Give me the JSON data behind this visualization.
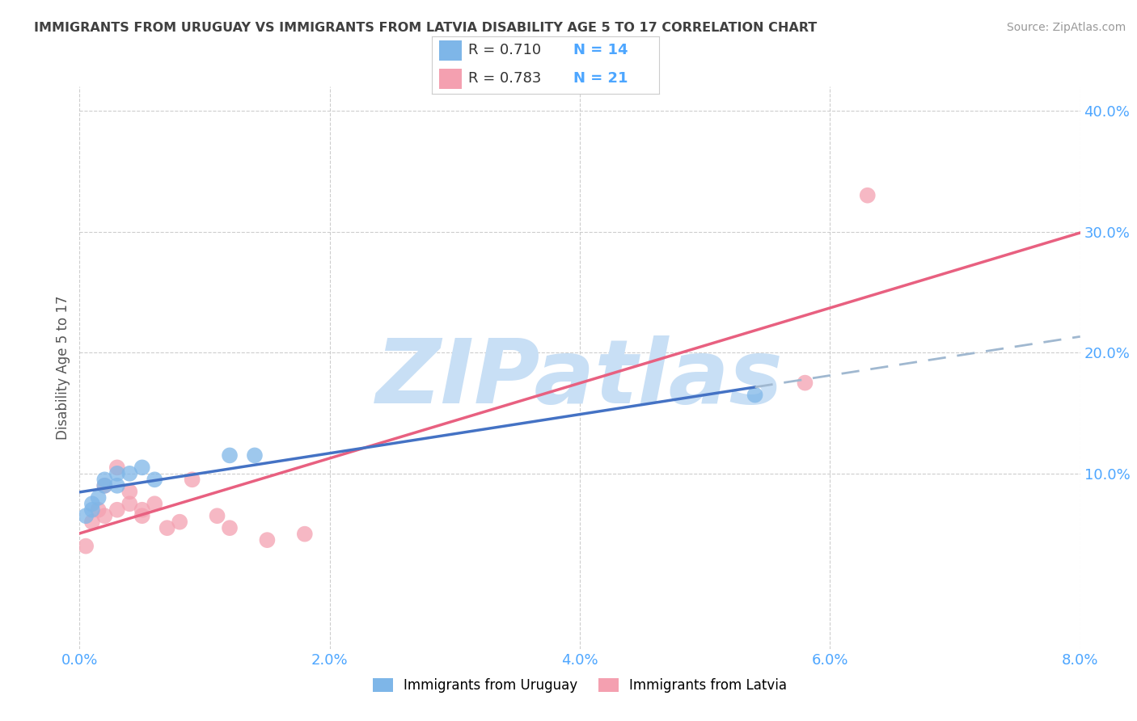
{
  "title": "IMMIGRANTS FROM URUGUAY VS IMMIGRANTS FROM LATVIA DISABILITY AGE 5 TO 17 CORRELATION CHART",
  "source": "Source: ZipAtlas.com",
  "ylabel": "Disability Age 5 to 17",
  "legend_bottom": [
    "Immigrants from Uruguay",
    "Immigrants from Latvia"
  ],
  "r_uruguay": 0.71,
  "n_uruguay": 14,
  "r_latvia": 0.783,
  "n_latvia": 21,
  "uruguay_color": "#7eb6e8",
  "latvia_color": "#f4a0b0",
  "line_uruguay_color": "#4472c4",
  "line_latvia_color": "#e86080",
  "background_color": "#ffffff",
  "grid_color": "#c8c8c8",
  "axis_label_color": "#4da6ff",
  "title_color": "#404040",
  "xlim": [
    0.0,
    0.08
  ],
  "ylim": [
    -0.045,
    0.42
  ],
  "xtick_values": [
    0.0,
    0.02,
    0.04,
    0.06,
    0.08
  ],
  "ytick_values": [
    0.1,
    0.2,
    0.3,
    0.4
  ],
  "uruguay_scatter_x": [
    0.0005,
    0.001,
    0.001,
    0.0015,
    0.002,
    0.002,
    0.003,
    0.003,
    0.004,
    0.005,
    0.006,
    0.012,
    0.014,
    0.054
  ],
  "uruguay_scatter_y": [
    0.065,
    0.07,
    0.075,
    0.08,
    0.09,
    0.095,
    0.09,
    0.1,
    0.1,
    0.105,
    0.095,
    0.115,
    0.115,
    0.165
  ],
  "latvia_scatter_x": [
    0.0005,
    0.001,
    0.0015,
    0.002,
    0.002,
    0.003,
    0.003,
    0.004,
    0.004,
    0.005,
    0.005,
    0.006,
    0.007,
    0.008,
    0.009,
    0.011,
    0.012,
    0.015,
    0.018,
    0.058,
    0.063
  ],
  "latvia_scatter_y": [
    0.04,
    0.06,
    0.07,
    0.065,
    0.09,
    0.07,
    0.105,
    0.075,
    0.085,
    0.065,
    0.07,
    0.075,
    0.055,
    0.06,
    0.095,
    0.065,
    0.055,
    0.045,
    0.05,
    0.175,
    0.33
  ],
  "watermark_text": "ZIPatlas",
  "watermark_color": "#c8dff5",
  "watermark_fontsize": 80
}
